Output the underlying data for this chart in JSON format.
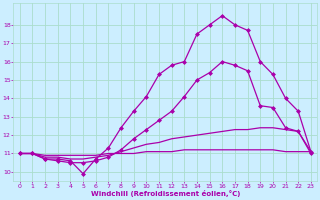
{
  "title": "",
  "xlabel": "Windchill (Refroidissement éolien,°C)",
  "background_color": "#cceeff",
  "grid_color": "#aaddcc",
  "line_color": "#aa00aa",
  "x_ticks": [
    0,
    1,
    2,
    3,
    4,
    5,
    6,
    7,
    8,
    9,
    10,
    11,
    12,
    13,
    14,
    15,
    16,
    17,
    18,
    19,
    20,
    21,
    22,
    23
  ],
  "ylim": [
    9.5,
    19.2
  ],
  "xlim": [
    -0.5,
    23.5
  ],
  "yticks": [
    10,
    11,
    12,
    13,
    14,
    15,
    16,
    17,
    18
  ],
  "lines": [
    {
      "x": [
        0,
        1,
        2,
        3,
        4,
        5,
        6,
        7,
        8,
        9,
        10,
        11,
        12,
        13,
        14,
        15,
        16,
        17,
        18,
        19,
        20,
        21,
        22,
        23
      ],
      "y": [
        11.0,
        11.0,
        10.7,
        10.7,
        10.6,
        9.9,
        10.7,
        11.3,
        12.4,
        13.3,
        14.1,
        15.3,
        15.8,
        16.0,
        17.5,
        18.0,
        18.5,
        18.0,
        17.7,
        16.0,
        15.3,
        14.0,
        13.3,
        11.1
      ],
      "marker": "D",
      "markersize": 2.0,
      "linewidth": 0.9
    },
    {
      "x": [
        0,
        1,
        2,
        3,
        4,
        5,
        6,
        7,
        8,
        9,
        10,
        11,
        12,
        13,
        14,
        15,
        16,
        17,
        18,
        19,
        20,
        21,
        22,
        23
      ],
      "y": [
        11.0,
        11.0,
        10.7,
        10.6,
        10.5,
        10.5,
        10.6,
        10.8,
        11.2,
        11.8,
        12.3,
        12.8,
        13.3,
        14.1,
        15.0,
        15.4,
        16.0,
        15.8,
        15.5,
        13.6,
        13.5,
        12.4,
        12.2,
        11.0
      ],
      "marker": "D",
      "markersize": 2.0,
      "linewidth": 0.9
    },
    {
      "x": [
        0,
        1,
        2,
        3,
        4,
        5,
        6,
        7,
        8,
        9,
        10,
        11,
        12,
        13,
        14,
        15,
        16,
        17,
        18,
        19,
        20,
        21,
        22,
        23
      ],
      "y": [
        11.0,
        11.0,
        10.8,
        10.8,
        10.7,
        10.7,
        10.8,
        10.9,
        11.1,
        11.3,
        11.5,
        11.6,
        11.8,
        11.9,
        12.0,
        12.1,
        12.2,
        12.3,
        12.3,
        12.4,
        12.4,
        12.3,
        12.2,
        11.1
      ],
      "marker": null,
      "markersize": 0,
      "linewidth": 0.9
    },
    {
      "x": [
        0,
        1,
        2,
        3,
        4,
        5,
        6,
        7,
        8,
        9,
        10,
        11,
        12,
        13,
        14,
        15,
        16,
        17,
        18,
        19,
        20,
        21,
        22,
        23
      ],
      "y": [
        11.0,
        11.0,
        10.9,
        10.9,
        10.9,
        10.9,
        10.9,
        11.0,
        11.0,
        11.0,
        11.1,
        11.1,
        11.1,
        11.2,
        11.2,
        11.2,
        11.2,
        11.2,
        11.2,
        11.2,
        11.2,
        11.1,
        11.1,
        11.1
      ],
      "marker": null,
      "markersize": 0,
      "linewidth": 0.9
    }
  ]
}
